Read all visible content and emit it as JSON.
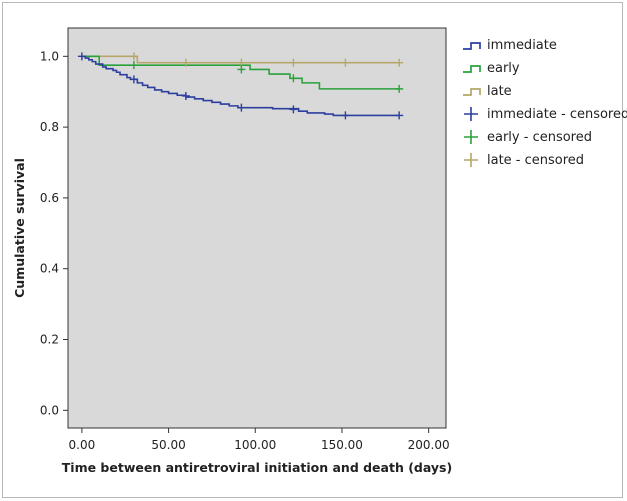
{
  "chart_data": {
    "type": "line",
    "subtype": "kaplan-meier step",
    "xlabel": "Time between antiretroviral initiation and death (days)",
    "ylabel": "Cumulative survival",
    "xlim": [
      -8,
      210
    ],
    "ylim": [
      -0.05,
      1.08
    ],
    "x_ticks": [
      0,
      50,
      100,
      150,
      200
    ],
    "x_tick_labels": [
      "0.00",
      "50.00",
      "100.00",
      "150.00",
      "200.00"
    ],
    "y_ticks": [
      0.0,
      0.2,
      0.4,
      0.6,
      0.8,
      1.0
    ],
    "y_tick_labels": [
      "0.0",
      "0.2",
      "0.4",
      "0.6",
      "0.8",
      "1.0"
    ],
    "grid": false,
    "plot_background": "#d9d9d9",
    "legend_position": "right",
    "series": [
      {
        "name": "immediate",
        "color": "#2d3f9e",
        "x": [
          0,
          2,
          4,
          6,
          8,
          12,
          14,
          18,
          20,
          22,
          26,
          28,
          32,
          35,
          38,
          42,
          46,
          50,
          55,
          60,
          65,
          70,
          75,
          80,
          85,
          90,
          110,
          125,
          130,
          140,
          145,
          183
        ],
        "y": [
          1.0,
          0.995,
          0.99,
          0.985,
          0.978,
          0.97,
          0.965,
          0.96,
          0.955,
          0.948,
          0.94,
          0.935,
          0.925,
          0.918,
          0.912,
          0.905,
          0.9,
          0.895,
          0.89,
          0.885,
          0.88,
          0.875,
          0.87,
          0.865,
          0.86,
          0.855,
          0.852,
          0.845,
          0.84,
          0.837,
          0.833,
          0.833
        ]
      },
      {
        "name": "early",
        "color": "#2aa23c",
        "x": [
          0,
          8,
          10,
          90,
          97,
          100,
          108,
          112,
          120,
          127,
          130,
          137,
          183
        ],
        "y": [
          1.0,
          1.0,
          0.975,
          0.975,
          0.963,
          0.963,
          0.95,
          0.95,
          0.938,
          0.925,
          0.925,
          0.908,
          0.908
        ]
      },
      {
        "name": "late",
        "color": "#b5a66a",
        "x": [
          0,
          30,
          32,
          183
        ],
        "y": [
          1.0,
          1.0,
          0.982,
          0.982
        ]
      }
    ],
    "censored": [
      {
        "name": "immediate - censored",
        "color": "#2d3f9e",
        "x": [
          0,
          30,
          60,
          92,
          122,
          152,
          183
        ],
        "y": [
          1.0,
          0.935,
          0.888,
          0.855,
          0.85,
          0.833,
          0.833
        ]
      },
      {
        "name": "early - censored",
        "color": "#2aa23c",
        "x": [
          30,
          92,
          122,
          183
        ],
        "y": [
          0.975,
          0.963,
          0.938,
          0.908
        ]
      },
      {
        "name": "late - censored",
        "color": "#b5a66a",
        "x": [
          30,
          60,
          92,
          122,
          152,
          183
        ],
        "y": [
          1.0,
          0.982,
          0.982,
          0.982,
          0.982,
          0.982
        ]
      }
    ],
    "legend": [
      {
        "label": "immediate",
        "color": "#2d3f9e",
        "marker": "step"
      },
      {
        "label": "early",
        "color": "#2aa23c",
        "marker": "step"
      },
      {
        "label": "late",
        "color": "#b5a66a",
        "marker": "step"
      },
      {
        "label": "immediate - censored",
        "color": "#2d3f9e",
        "marker": "cross"
      },
      {
        "label": "early - censored",
        "color": "#2aa23c",
        "marker": "cross"
      },
      {
        "label": "late - censored",
        "color": "#b5a66a",
        "marker": "cross"
      }
    ]
  }
}
